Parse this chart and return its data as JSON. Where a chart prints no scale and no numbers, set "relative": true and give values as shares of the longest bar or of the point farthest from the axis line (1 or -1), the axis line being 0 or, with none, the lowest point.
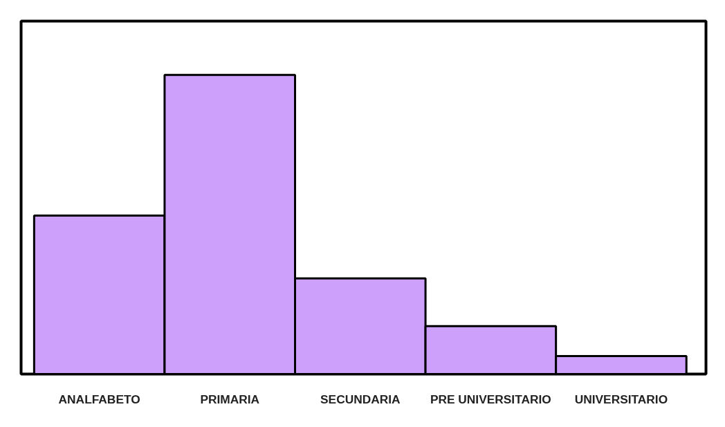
{
  "chart_data": {
    "type": "bar",
    "relative": true,
    "categories": [
      "ANALFABETO",
      "PRIMARIA",
      "SECUNDARIA",
      "PRE UNIVERSITARIO",
      "UNIVERSITARIO"
    ],
    "values": [
      0.53,
      1,
      0.32,
      0.16,
      0.06
    ],
    "color": "#cda0fc"
  }
}
